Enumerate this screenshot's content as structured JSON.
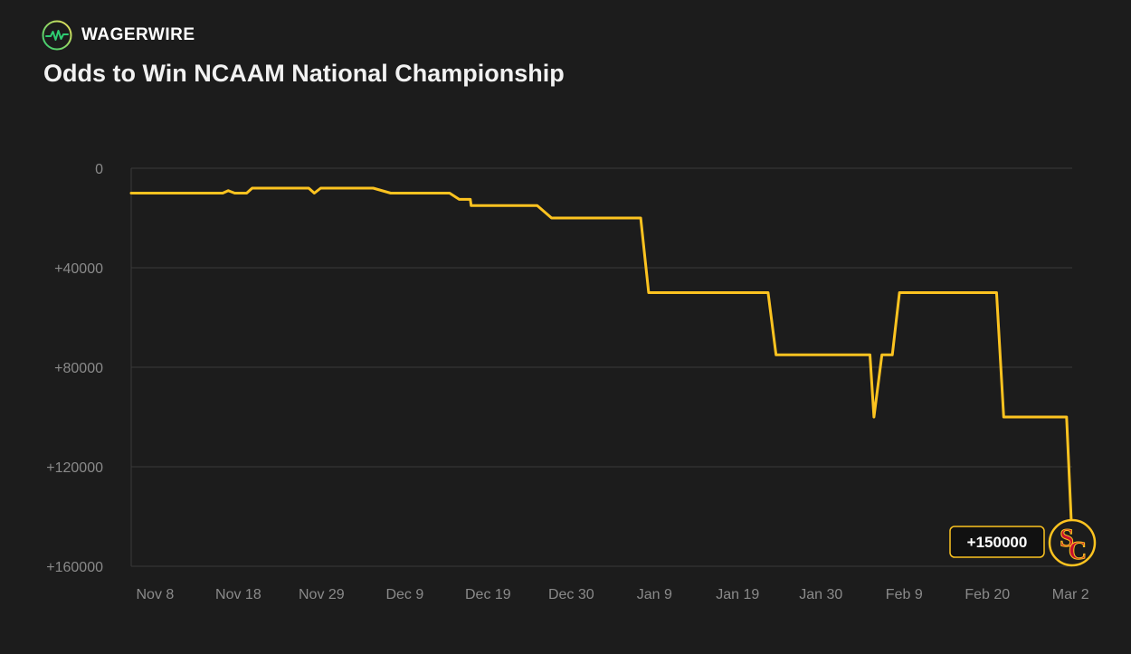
{
  "brand": {
    "name": "WAGERWIRE",
    "icon": "pulse-circle-icon",
    "accent": "#2ecc71"
  },
  "title": "Odds to Win NCAAM National Championship",
  "colors": {
    "line": "#fcc320",
    "grid": "#3a3a3a",
    "axis_text": "#8a8a8a",
    "background": "#1c1c1c"
  },
  "team": {
    "name": "USC",
    "logo": "usc-logo-icon",
    "color": "#c8102e"
  },
  "chart_data": {
    "type": "line",
    "title": "Odds to Win NCAAM National Championship",
    "xlabel": "",
    "ylabel": "",
    "ylim": [
      0,
      160000
    ],
    "y_inverted": true,
    "y_ticks": [
      0,
      40000,
      80000,
      120000,
      160000
    ],
    "y_tick_labels": [
      "0",
      "+40000",
      "+80000",
      "+120000",
      "+160000"
    ],
    "x_range": [
      "Nov 5",
      "Mar 2"
    ],
    "x_ticks": [
      "Nov 8",
      "Nov 18",
      "Nov 29",
      "Dec 9",
      "Dec 19",
      "Dec 30",
      "Jan 9",
      "Jan 19",
      "Jan 30",
      "Feb 9",
      "Feb 20",
      "Mar 2"
    ],
    "series": [
      {
        "name": "USC",
        "x": [
          0,
          11.5,
          12.2,
          13,
          14.5,
          15.2,
          22.3,
          23,
          23.8,
          30.4,
          32.6,
          40,
          41.2,
          42.6,
          42.7,
          51,
          52.8,
          64,
          65,
          80,
          81,
          92.8,
          93.3,
          94.3,
          95,
          95.6,
          96.5,
          108.7,
          109.6,
          117.5,
          118.2
        ],
        "values": [
          10000,
          10000,
          9000,
          10000,
          10000,
          8000,
          8000,
          10000,
          8000,
          8000,
          10000,
          10000,
          12500,
          12500,
          15000,
          15000,
          20000,
          20000,
          50000,
          50000,
          75000,
          75000,
          100000,
          75000,
          75000,
          75000,
          50000,
          50000,
          100000,
          100000,
          150000
        ]
      }
    ],
    "last_value_label": "+150000"
  }
}
